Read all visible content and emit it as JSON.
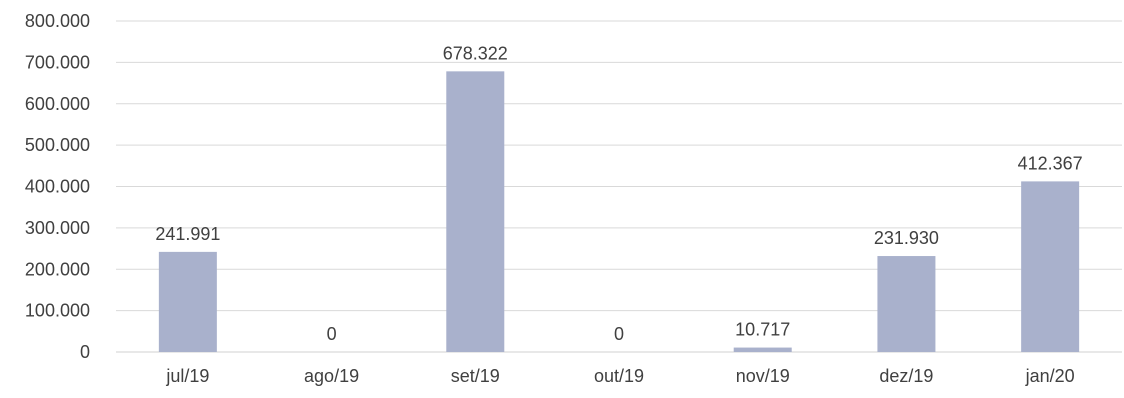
{
  "chart_data": {
    "type": "bar",
    "title": "",
    "xlabel": "",
    "ylabel": "",
    "categories": [
      "jul/19",
      "ago/19",
      "set/19",
      "out/19",
      "nov/19",
      "dez/19",
      "jan/20"
    ],
    "values": [
      241991,
      0,
      678322,
      0,
      10717,
      231930,
      412367
    ],
    "value_labels": [
      "241.991",
      "0",
      "678.322",
      "0",
      "10.717",
      "231.930",
      "412.367"
    ],
    "ylim": [
      0,
      800000
    ],
    "yticks": [
      0,
      100000,
      200000,
      300000,
      400000,
      500000,
      600000,
      700000,
      800000
    ],
    "ytick_labels": [
      "0",
      "100.000",
      "200.000",
      "300.000",
      "400.000",
      "500.000",
      "600.000",
      "700.000",
      "800.000"
    ],
    "grid": true,
    "legend": "none",
    "bar_color": "#a9b1cc"
  }
}
